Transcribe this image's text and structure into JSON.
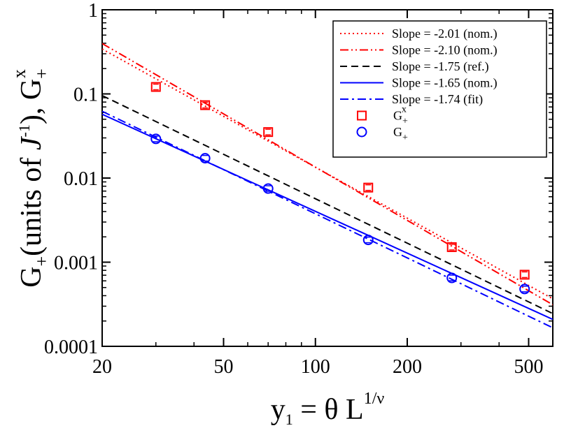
{
  "chart_data": {
    "type": "scatter",
    "xscale": "log",
    "yscale": "log",
    "xlim": [
      20,
      600
    ],
    "ylim": [
      0.0001,
      1
    ],
    "x_ticks": [
      {
        "value": 20,
        "label": "20"
      },
      {
        "value": 50,
        "label": "50"
      },
      {
        "value": 100,
        "label": "100"
      },
      {
        "value": 200,
        "label": "200"
      },
      {
        "value": 500,
        "label": "500"
      }
    ],
    "y_ticks": [
      {
        "value": 0.0001,
        "label": "0.0001"
      },
      {
        "value": 0.001,
        "label": "0.001"
      },
      {
        "value": 0.01,
        "label": "0.01"
      },
      {
        "value": 0.1,
        "label": "0.1"
      },
      {
        "value": 1,
        "label": "1"
      }
    ],
    "xlabel": {
      "main": "y",
      "sub": "1",
      "rest": " = θ L",
      "sup": "1/ν"
    },
    "ylabel": {
      "part1": "G",
      "part1_sub": "+",
      "part2": "(units of ",
      "part2_italic": "J",
      "part2_sup": "-1",
      "part3": "), G",
      "part3_sub": "+",
      "part3_sup": "x"
    },
    "lines": [
      {
        "name": "slope-201-nom",
        "legend": "Slope = -2.01 (nom.)",
        "color": "#ff0000",
        "dash": "dot",
        "x": [
          20,
          600
        ],
        "y": [
          0.3417,
          0.000367
        ]
      },
      {
        "name": "slope-210-nom",
        "legend": "Slope = -2.10 (nom.)",
        "color": "#ff0000",
        "dash": "dashdotdot",
        "x": [
          20,
          600
        ],
        "y": [
          0.3972,
          0.000312
        ]
      },
      {
        "name": "slope-175-ref",
        "legend": "Slope = -1.75 (ref.)",
        "color": "#000000",
        "dash": "dash",
        "x": [
          20,
          600
        ],
        "y": [
          0.0956,
          0.000245
        ]
      },
      {
        "name": "slope-165-nom",
        "legend": "Slope = -1.65 (nom.)",
        "color": "#0000ff",
        "dash": "solid",
        "x": [
          20,
          600
        ],
        "y": [
          0.0573,
          0.000209
        ]
      },
      {
        "name": "slope-174-fit",
        "legend": "Slope = -1.74 (fit)",
        "color": "#0000ff",
        "dash": "dashdot",
        "x": [
          20,
          600
        ],
        "y": [
          0.0621,
          0.000166
        ]
      }
    ],
    "series": [
      {
        "name": "G+x",
        "legend_main": "G",
        "legend_sub": "+",
        "legend_sup": "x",
        "marker": "square",
        "color": "#ff0000",
        "x": [
          30,
          43.5,
          70,
          149,
          280,
          485
        ],
        "y": [
          0.121,
          0.0735,
          0.0352,
          0.0077,
          0.00151,
          0.00071
        ]
      },
      {
        "name": "G+",
        "legend_main": "G",
        "legend_sub": "+",
        "legend_sup": "",
        "marker": "circle",
        "color": "#0000ff",
        "x": [
          30,
          43.5,
          70,
          149,
          280,
          485
        ],
        "y": [
          0.0292,
          0.0172,
          0.0075,
          0.00184,
          0.00065,
          0.00048
        ]
      }
    ],
    "legend_position": "top-right"
  }
}
